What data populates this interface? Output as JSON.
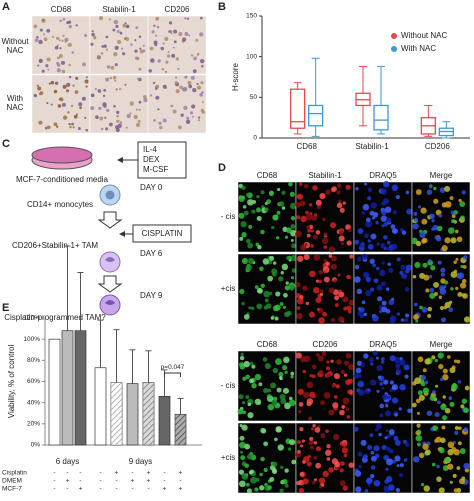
{
  "panel_labels": [
    "A",
    "B",
    "C",
    "D",
    "E"
  ],
  "panel_a": {
    "columns": [
      "CD68",
      "Stabilin-1",
      "CD206"
    ],
    "rows": [
      [
        "Without",
        "NAC"
      ],
      [
        "With",
        "NAC"
      ]
    ]
  },
  "panel_c": {
    "media": "MCF-7-conditioned media",
    "cytokines": [
      "IL-4",
      "DEX",
      "M-CSF"
    ],
    "days": [
      "DAY 0",
      "DAY 6",
      "DAY 9"
    ],
    "cells": [
      "CD14+ monocytes",
      "CD206+Stabilin-1+ TAM",
      "Cisplatin-programmed TAM?"
    ],
    "drug": "CISPLATIN"
  },
  "panel_d": {
    "blocks": [
      {
        "columns": [
          "CD68",
          "Stabilin-1",
          "DRAQ5",
          "Merge"
        ]
      },
      {
        "columns": [
          "CD68",
          "CD206",
          "DRAQ5",
          "Merge"
        ]
      }
    ],
    "rows": [
      "- cis",
      "+cis"
    ]
  },
  "chart_data": [
    {
      "type": "box",
      "ylabel": "H-score",
      "categories": [
        "CD68",
        "Stabilin-1",
        "CD206"
      ],
      "ylim": [
        0,
        150
      ],
      "yticks": [
        0,
        50,
        100,
        150
      ],
      "legend": "upper right",
      "series": [
        {
          "name": "Without NAC",
          "color": "#e8474e",
          "min": [
            5,
            15,
            2
          ],
          "q1": [
            12,
            40,
            5
          ],
          "median": [
            20,
            47,
            15
          ],
          "q3": [
            60,
            55,
            25
          ],
          "max": [
            68,
            88,
            40
          ]
        },
        {
          "name": "With NAC",
          "color": "#3a9ad9",
          "min": [
            2,
            5,
            0
          ],
          "q1": [
            15,
            10,
            3
          ],
          "median": [
            30,
            22,
            8
          ],
          "q3": [
            40,
            40,
            12
          ],
          "max": [
            98,
            88,
            20
          ]
        }
      ]
    },
    {
      "type": "bar",
      "ylabel": "Viability, % of control",
      "ylim": [
        0,
        120
      ],
      "yticks": [
        {
          "value": 0,
          "label": "0%"
        },
        {
          "value": 20,
          "label": "20%"
        },
        {
          "value": 40,
          "label": "40%"
        },
        {
          "value": 60,
          "label": "60%"
        },
        {
          "value": 80,
          "label": "80%"
        },
        {
          "value": 100,
          "label": "100%"
        },
        {
          "value": 120,
          "label": "120%"
        }
      ],
      "condition_labels": [
        "Cisplatin",
        "DMEM",
        "MCF-7"
      ],
      "groups": [
        {
          "label": "6 days",
          "values": [
            100,
            108,
            108
          ],
          "errors": [
            null,
            80,
            55
          ],
          "colors": [
            "#ffffff",
            "#bbbbbb",
            "#666666"
          ],
          "hatched": [
            false,
            false,
            false
          ],
          "conditions": [
            [
              "-",
              "-",
              "-"
            ],
            [
              "-",
              "+",
              "-"
            ],
            [
              "-",
              "-",
              "+"
            ]
          ]
        },
        {
          "label": "9 days",
          "values": [
            73,
            59,
            58,
            59,
            46,
            29
          ],
          "errors": [
            45,
            50,
            32,
            30,
            25,
            15
          ],
          "colors": [
            "#ffffff",
            "#ffffff",
            "#bbbbbb",
            "#bbbbbb",
            "#666666",
            "#666666"
          ],
          "hatched": [
            false,
            true,
            false,
            true,
            false,
            true
          ],
          "conditions": [
            [
              "-",
              "+",
              "-",
              "+",
              "-",
              "+"
            ],
            [
              "-",
              "-",
              "+",
              "+",
              "-",
              "-"
            ],
            [
              "-",
              "-",
              "-",
              "-",
              "+",
              "+"
            ]
          ]
        }
      ],
      "annotation": "p=0.047"
    }
  ]
}
